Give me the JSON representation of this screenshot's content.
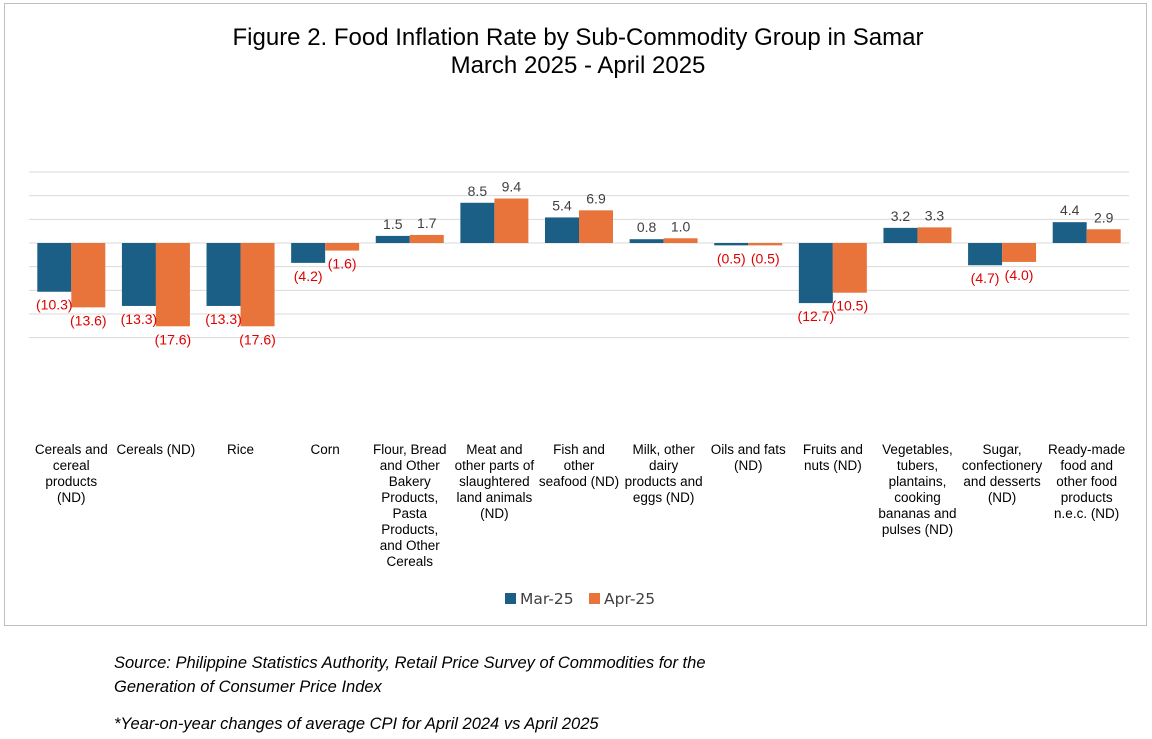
{
  "chart_data": {
    "type": "bar",
    "title": "Figure 2. Food Inflation Rate by Sub-Commodity Group in Samar",
    "subtitle": "March 2025 - April 2025",
    "categories": [
      [
        "Cereals and",
        "cereal",
        "products",
        "(ND)"
      ],
      [
        "Cereals (ND)"
      ],
      [
        "Rice"
      ],
      [
        "Corn"
      ],
      [
        "Flour, Bread",
        "and Other",
        "Bakery",
        "Products,",
        "Pasta",
        "Products,",
        "and Other",
        "Cereals"
      ],
      [
        "Meat and",
        "other parts of",
        "slaughtered",
        "land animals",
        "(ND)"
      ],
      [
        "Fish and",
        "other",
        "seafood (ND)"
      ],
      [
        "Milk, other",
        "dairy",
        "products and",
        "eggs (ND)"
      ],
      [
        "Oils and fats",
        "(ND)"
      ],
      [
        "Fruits and",
        "nuts (ND)"
      ],
      [
        "Vegetables,",
        "tubers,",
        "plantains,",
        "cooking",
        "bananas and",
        "pulses (ND)"
      ],
      [
        "Sugar,",
        "confectionery",
        "and desserts",
        "(ND)"
      ],
      [
        "Ready-made",
        "food and",
        "other food",
        "products",
        "n.e.c. (ND)"
      ]
    ],
    "series": [
      {
        "name": "Mar-25",
        "color": "#1b5f86",
        "values": [
          -10.3,
          -13.3,
          -13.3,
          -4.2,
          1.5,
          8.5,
          5.4,
          0.8,
          -0.5,
          -12.7,
          3.2,
          -4.7,
          4.4
        ],
        "labels": [
          "(10.3)",
          "(13.3)",
          "(13.3)",
          "(4.2)",
          "1.5",
          "8.5",
          "5.4",
          "0.8",
          "(0.5)",
          "(12.7)",
          "3.2",
          "(4.7)",
          "4.4"
        ]
      },
      {
        "name": "Apr-25",
        "color": "#e8743b",
        "values": [
          -13.6,
          -17.6,
          -17.6,
          -1.6,
          1.7,
          9.4,
          6.9,
          1.0,
          -0.5,
          -10.5,
          3.3,
          -4.0,
          2.9
        ],
        "labels": [
          "(13.6)",
          "(17.6)",
          "(17.6)",
          "(1.6)",
          "1.7",
          "9.4",
          "6.9",
          "1.0",
          "(0.5)",
          "(10.5)",
          "3.3",
          "(4.0)",
          "2.9"
        ]
      }
    ],
    "ylim": [
      -20,
      15
    ],
    "grid": true,
    "legend": "bottom",
    "negative_label_color": "#e00000",
    "positive_label_color": "#404040"
  },
  "footnotes": {
    "source_line1": "Source: Philippine Statistics Authority, Retail Price Survey of Commodities for the",
    "source_line2": "Generation of Consumer Price Index",
    "note": "*Year-on-year changes of average CPI for April 2024 vs April 2025"
  }
}
